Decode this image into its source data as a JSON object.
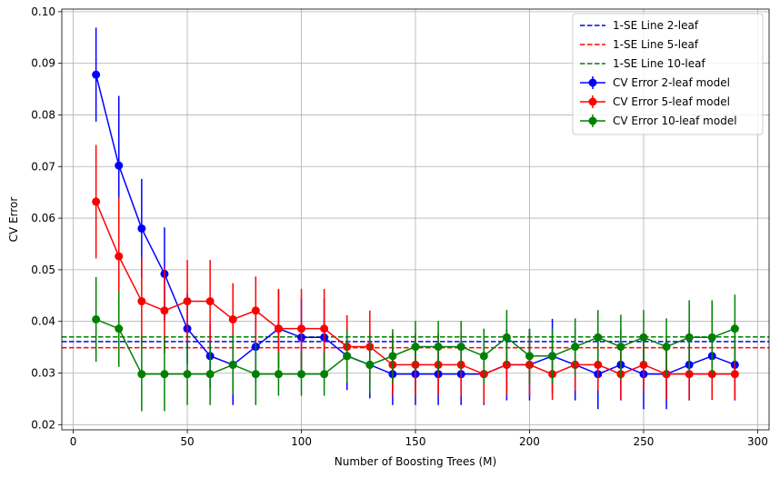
{
  "chart_data": {
    "type": "line",
    "title": "",
    "xlabel": "Number of Boosting Trees (M)",
    "ylabel": "CV Error",
    "xlim": [
      -5,
      305
    ],
    "ylim": [
      0.019,
      0.1005
    ],
    "xticks": [
      0,
      50,
      100,
      150,
      200,
      250,
      300
    ],
    "yticks": [
      0.02,
      0.03,
      0.04,
      0.05,
      0.06,
      0.07,
      0.08,
      0.09,
      0.1
    ],
    "grid": true,
    "legend_position": "top-right",
    "x": [
      10,
      20,
      30,
      40,
      50,
      60,
      70,
      80,
      90,
      100,
      110,
      120,
      130,
      140,
      150,
      160,
      170,
      180,
      190,
      200,
      210,
      220,
      230,
      240,
      250,
      260,
      270,
      280,
      290
    ],
    "series": [
      {
        "name": "CV Error 2-leaf model",
        "color": "#0000ff",
        "values": [
          0.0878,
          0.0702,
          0.058,
          0.0492,
          0.0386,
          0.0333,
          0.0316,
          0.0351,
          0.0386,
          0.0369,
          0.0369,
          0.0333,
          0.0316,
          0.0298,
          0.0298,
          0.0298,
          0.0298,
          0.0298,
          0.0316,
          0.0316,
          0.0333,
          0.0316,
          0.0298,
          0.0316,
          0.0298,
          0.0298,
          0.0316,
          0.0333,
          0.0316
        ],
        "errors": [
          0.0091,
          0.0135,
          0.0096,
          0.009,
          0.0069,
          0.0062,
          0.0078,
          0.0069,
          0.0075,
          0.0075,
          0.0075,
          0.0066,
          0.0065,
          0.006,
          0.006,
          0.006,
          0.006,
          0.006,
          0.0069,
          0.0069,
          0.0072,
          0.0069,
          0.0068,
          0.0069,
          0.0068,
          0.0068,
          0.0069,
          0.0072,
          0.0069
        ]
      },
      {
        "name": "CV Error 5-leaf model",
        "color": "#ff0000",
        "values": [
          0.0632,
          0.0526,
          0.0439,
          0.0421,
          0.0439,
          0.0439,
          0.0404,
          0.0421,
          0.0386,
          0.0386,
          0.0386,
          0.0351,
          0.0351,
          0.0316,
          0.0316,
          0.0316,
          0.0316,
          0.0298,
          0.0316,
          0.0316,
          0.0298,
          0.0316,
          0.0316,
          0.0298,
          0.0316,
          0.0298,
          0.0298,
          0.0298,
          0.0298
        ],
        "errors": [
          0.011,
          0.0115,
          0.0086,
          0.0083,
          0.008,
          0.008,
          0.007,
          0.0066,
          0.0077,
          0.0077,
          0.0077,
          0.0061,
          0.007,
          0.0061,
          0.0061,
          0.0061,
          0.0061,
          0.0057,
          0.0061,
          0.0061,
          0.005,
          0.005,
          0.005,
          0.005,
          0.005,
          0.005,
          0.005,
          0.005,
          0.005
        ]
      },
      {
        "name": "CV Error 10-leaf model",
        "color": "#008000",
        "values": [
          0.0404,
          0.0386,
          0.0298,
          0.0298,
          0.0298,
          0.0298,
          0.0316,
          0.0298,
          0.0298,
          0.0298,
          0.0298,
          0.0333,
          0.0316,
          0.0333,
          0.0351,
          0.0351,
          0.0351,
          0.0333,
          0.0369,
          0.0333,
          0.0333,
          0.0351,
          0.0369,
          0.0351,
          0.0369,
          0.0351,
          0.0369,
          0.0369,
          0.0386
        ],
        "errors": [
          0.0082,
          0.0074,
          0.0072,
          0.0072,
          0.006,
          0.006,
          0.0058,
          0.006,
          0.0042,
          0.0042,
          0.0042,
          0.0052,
          0.0055,
          0.0052,
          0.005,
          0.005,
          0.005,
          0.0053,
          0.0053,
          0.0053,
          0.0053,
          0.0055,
          0.0053,
          0.0062,
          0.0053,
          0.0055,
          0.0072,
          0.0072,
          0.0066
        ]
      }
    ],
    "hlines": [
      {
        "name": "1-SE Line 2-leaf",
        "color": "#0000ff",
        "value": 0.0361
      },
      {
        "name": "1-SE Line 5-leaf",
        "color": "#ff0000",
        "value": 0.0349
      },
      {
        "name": "1-SE Line 10-leaf",
        "color": "#008000",
        "value": 0.037
      }
    ]
  }
}
